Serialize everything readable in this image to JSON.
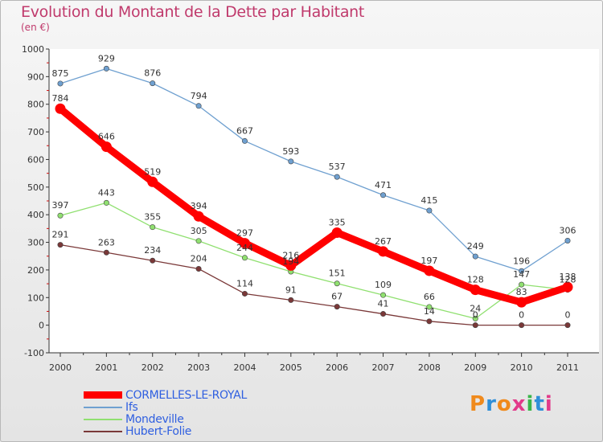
{
  "title": "Evolution du Montant de la Dette par Habitant",
  "unit": "(en €)",
  "logo": {
    "letters": [
      "P",
      "r",
      "o",
      "x",
      "i",
      "t",
      "i"
    ],
    "colors": [
      "#f08a1c",
      "#2f8fd8",
      "#f08a1c",
      "#e23a8a",
      "#39b54a",
      "#2f8fd8",
      "#e23a8a"
    ]
  },
  "chart_data": {
    "type": "line",
    "title": "Evolution du Montant de la Dette par Habitant",
    "ylabel": "(en €)",
    "xlabel": "",
    "x": [
      "2000",
      "2001",
      "2002",
      "2003",
      "2004",
      "2005",
      "2006",
      "2007",
      "2008",
      "2009",
      "2010",
      "2011"
    ],
    "ylim": [
      -100,
      1000
    ],
    "yticks": [
      "1000",
      "900",
      "800",
      "700",
      "600",
      "500",
      "400",
      "300",
      "200",
      "100",
      "0",
      "-100"
    ],
    "grid": false,
    "legend": "bottom-left",
    "series": [
      {
        "name": "CORMELLES-LE-ROYAL",
        "color": "#ff0000",
        "values": [
          784,
          646,
          519,
          394,
          297,
          216,
          335,
          267,
          197,
          128,
          83,
          138
        ],
        "labels": [
          "784",
          "646",
          "519",
          "394",
          "297",
          "216",
          "335",
          "267",
          "197",
          "128",
          "83",
          "138"
        ]
      },
      {
        "name": "Ifs",
        "color": "#6fa0d0",
        "values": [
          875,
          929,
          876,
          794,
          667,
          593,
          537,
          471,
          415,
          249,
          196,
          306
        ],
        "labels": [
          "875",
          "929",
          "876",
          "794",
          "667",
          "593",
          "537",
          "471",
          "415",
          "249",
          "196",
          "306"
        ]
      },
      {
        "name": "Mondeville",
        "color": "#90e070",
        "values": [
          397,
          443,
          355,
          305,
          244,
          194,
          151,
          109,
          66,
          24,
          147,
          128
        ],
        "labels": [
          "397",
          "443",
          "355",
          "305",
          "244",
          "194",
          "151",
          "109",
          "66",
          "24",
          "147",
          "128"
        ]
      },
      {
        "name": "Hubert-Folie",
        "color": "#7a3838",
        "values": [
          291,
          263,
          234,
          204,
          114,
          91,
          67,
          41,
          14,
          0,
          0,
          0
        ],
        "labels": [
          "291",
          "263",
          "234",
          "204",
          "114",
          "91",
          "67",
          "41",
          "14",
          "0",
          "0",
          "0"
        ]
      }
    ]
  }
}
